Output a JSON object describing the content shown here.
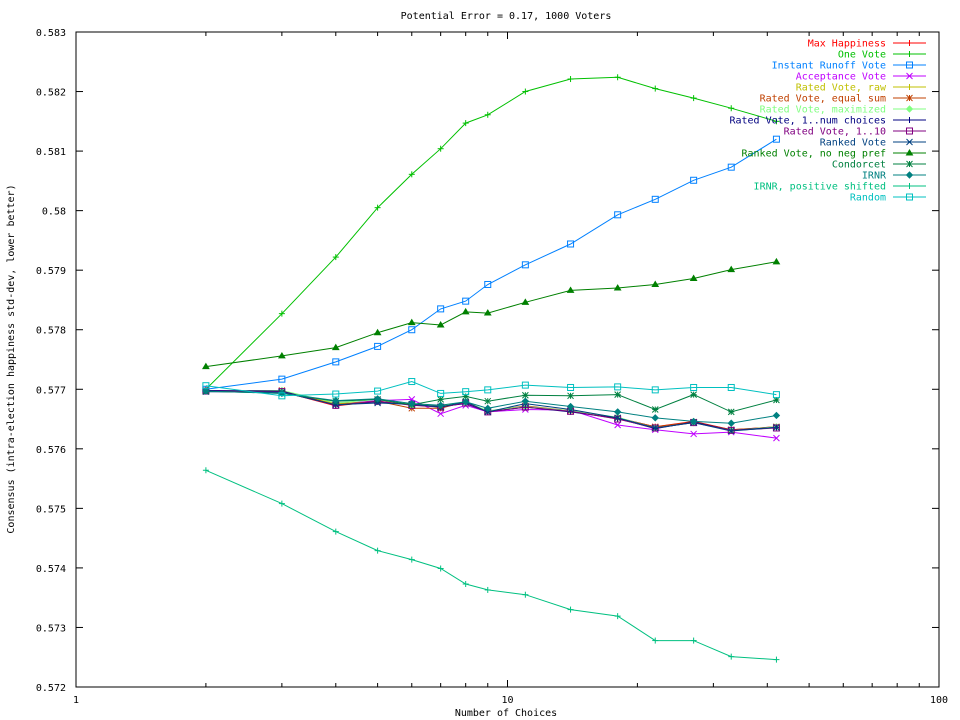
{
  "chart_data": {
    "type": "line",
    "title": "Potential Error = 0.17, 1000 Voters",
    "xlabel": "Number of Choices",
    "ylabel": "Consensus (intra-election happiness std-dev, lower better)",
    "xscale": "log",
    "xlim": [
      1,
      100
    ],
    "ylim": [
      0.572,
      0.583
    ],
    "x_ticks": [
      1,
      10,
      100
    ],
    "y_ticks": [
      0.572,
      0.573,
      0.574,
      0.575,
      0.576,
      0.577,
      0.578,
      0.579,
      0.58,
      0.581,
      0.582,
      0.583
    ],
    "y_tick_labels": [
      "0.572",
      "0.573",
      "0.574",
      "0.575",
      "0.576",
      "0.577",
      "0.578",
      "0.579",
      "0.58",
      "0.581",
      "0.582",
      "0.583"
    ],
    "x_tick_labels": [
      "1",
      "10",
      "100"
    ],
    "grid": false,
    "legend_position": "top-right",
    "x": [
      2,
      3,
      4,
      5,
      6,
      7,
      8,
      9,
      11,
      14,
      18,
      22,
      27,
      33,
      42
    ],
    "series": [
      {
        "name": "Max Happiness",
        "color": "#ff0000",
        "marker": "plus",
        "values": [
          0.57698,
          0.57696,
          0.57672,
          0.5768,
          0.57674,
          0.5767,
          0.57677,
          0.57663,
          0.57671,
          0.57663,
          0.57652,
          0.57637,
          0.57646,
          0.57632,
          0.57637
        ]
      },
      {
        "name": "One Vote",
        "color": "#00c000",
        "marker": "plus",
        "values": [
          0.577,
          0.57827,
          0.57922,
          0.58005,
          0.58061,
          0.58104,
          0.58147,
          0.58161,
          0.582,
          0.58221,
          0.58224,
          0.58205,
          0.58189,
          0.58172,
          0.5815
        ]
      },
      {
        "name": "Instant Runoff Vote",
        "color": "#0080ff",
        "marker": "square",
        "values": [
          0.577,
          0.57717,
          0.57746,
          0.57772,
          0.578,
          0.57835,
          0.57848,
          0.57876,
          0.57909,
          0.57944,
          0.57993,
          0.58019,
          0.58051,
          0.58073,
          0.5812
        ]
      },
      {
        "name": "Acceptance Vote",
        "color": "#c000ff",
        "marker": "x",
        "values": [
          0.57698,
          0.57695,
          0.57675,
          0.57681,
          0.57683,
          0.57659,
          0.57673,
          0.57662,
          0.57666,
          0.57665,
          0.5764,
          0.57632,
          0.57625,
          0.57628,
          0.57618
        ]
      },
      {
        "name": "Rated Vote, raw",
        "color": "#c0c000",
        "marker": "plus",
        "values": [
          0.57697,
          0.57697,
          0.57676,
          0.57679,
          0.57675,
          0.57672,
          0.57677,
          0.57663,
          0.5767,
          0.57664,
          0.5765,
          0.57636,
          0.57645,
          0.57631,
          0.57637
        ]
      },
      {
        "name": "Rated Vote, equal sum",
        "color": "#c04000",
        "marker": "star",
        "values": [
          0.57697,
          0.57698,
          0.57674,
          0.5768,
          0.57668,
          0.57668,
          0.57679,
          0.57663,
          0.57672,
          0.57664,
          0.57652,
          0.57637,
          0.57645,
          0.57632,
          0.57637
        ]
      },
      {
        "name": "Rated Vote, maximized",
        "color": "#80ff80",
        "marker": "diamond",
        "values": [
          0.57697,
          0.57698,
          0.57677,
          0.57683,
          0.57673,
          0.57673,
          0.57678,
          0.57664,
          0.57671,
          0.57664,
          0.57653,
          0.57635,
          0.57644,
          0.57631,
          0.57637
        ]
      },
      {
        "name": "Rated Vote, 1..num choices",
        "color": "#000080",
        "marker": "plus",
        "values": [
          0.57698,
          0.57697,
          0.57673,
          0.57679,
          0.57674,
          0.57671,
          0.57676,
          0.57662,
          0.5767,
          0.57662,
          0.57651,
          0.57634,
          0.57645,
          0.57631,
          0.57636
        ]
      },
      {
        "name": "Rated Vote, 1..10",
        "color": "#800080",
        "marker": "square",
        "values": [
          0.57697,
          0.57696,
          0.57673,
          0.5768,
          0.57673,
          0.5767,
          0.57677,
          0.57662,
          0.5767,
          0.57663,
          0.5765,
          0.57635,
          0.57644,
          0.57631,
          0.57635
        ]
      },
      {
        "name": "Ranked Vote",
        "color": "#004080",
        "marker": "x",
        "values": [
          0.57696,
          0.57695,
          0.57674,
          0.57677,
          0.57675,
          0.5767,
          0.57679,
          0.57662,
          0.57676,
          0.57666,
          0.57652,
          0.57635,
          0.57644,
          0.5763,
          0.57636
        ]
      },
      {
        "name": "Ranked Vote, no neg pref",
        "color": "#008000",
        "marker": "triangle",
        "values": [
          0.57738,
          0.57756,
          0.5777,
          0.57795,
          0.57812,
          0.57808,
          0.5783,
          0.57828,
          0.57846,
          0.57866,
          0.5787,
          0.57876,
          0.57886,
          0.57901,
          0.57914
        ]
      },
      {
        "name": "Condorcet",
        "color": "#008040",
        "marker": "star",
        "values": [
          0.57697,
          0.57693,
          0.5768,
          0.57683,
          0.57674,
          0.57683,
          0.57688,
          0.5768,
          0.5769,
          0.57689,
          0.57691,
          0.57666,
          0.57691,
          0.57662,
          0.57682
        ]
      },
      {
        "name": "IRNR",
        "color": "#008080",
        "marker": "diamond",
        "values": [
          0.57697,
          0.57693,
          0.57681,
          0.57684,
          0.57676,
          0.57673,
          0.57679,
          0.57668,
          0.5768,
          0.57671,
          0.57662,
          0.57652,
          0.57646,
          0.57643,
          0.57656
        ]
      },
      {
        "name": "IRNR, positive shifted",
        "color": "#00c080",
        "marker": "plus",
        "values": [
          0.57564,
          0.57508,
          0.57461,
          0.57429,
          0.57414,
          0.57399,
          0.57373,
          0.57363,
          0.57355,
          0.5733,
          0.57319,
          0.57278,
          0.57278,
          0.57251,
          0.57246
        ]
      },
      {
        "name": "Random",
        "color": "#00c0c0",
        "marker": "square",
        "values": [
          0.57706,
          0.57689,
          0.57692,
          0.57697,
          0.57713,
          0.57693,
          0.57696,
          0.57699,
          0.57707,
          0.57703,
          0.57704,
          0.57699,
          0.57703,
          0.57703,
          0.57691
        ]
      }
    ]
  }
}
